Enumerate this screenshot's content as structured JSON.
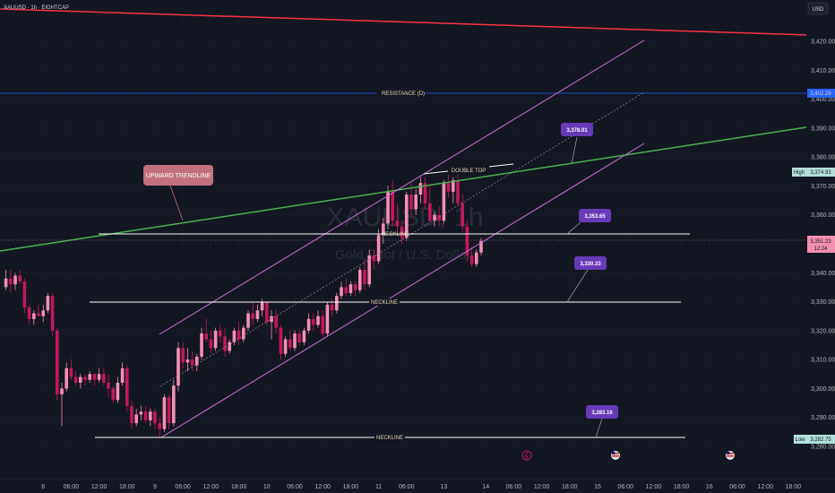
{
  "header": {
    "symbol": "XAUUSD · 1h · EIGHTCAP",
    "currency": "USD"
  },
  "watermark": {
    "symbol": "XAUUSD, 1h",
    "description": "Gold Spot / U.S. Dollar"
  },
  "chart_data": {
    "type": "candlestick",
    "ylim": [
      3278,
      3432
    ],
    "y_ticks": [
      "3,280.00",
      "3,290.00",
      "3,300.00",
      "3,310.00",
      "3,320.00",
      "3,330.00",
      "3,340.00",
      "3,350.00",
      "3,360.00",
      "3,370.00",
      "3,380.00",
      "3,390.00",
      "3,400.00",
      "3,410.00",
      "3,420.00"
    ],
    "y_tick_values": [
      3280,
      3290,
      3300,
      3310,
      3320,
      3330,
      3340,
      3350,
      3360,
      3370,
      3380,
      3390,
      3400,
      3410,
      3420
    ],
    "x_ticks": [
      {
        "label": "8",
        "bar": 8
      },
      {
        "label": "06:00",
        "bar": 14
      },
      {
        "label": "12:00",
        "bar": 20
      },
      {
        "label": "18:00",
        "bar": 26
      },
      {
        "label": "9",
        "bar": 32
      },
      {
        "label": "06:00",
        "bar": 38
      },
      {
        "label": "12:00",
        "bar": 44
      },
      {
        "label": "18:00",
        "bar": 50
      },
      {
        "label": "10",
        "bar": 56
      },
      {
        "label": "06:00",
        "bar": 62
      },
      {
        "label": "12:00",
        "bar": 68
      },
      {
        "label": "18:00",
        "bar": 74
      },
      {
        "label": "11",
        "bar": 80
      },
      {
        "label": "06:00",
        "bar": 86
      },
      {
        "label": "13",
        "bar": 94
      },
      {
        "label": "14",
        "bar": 103
      },
      {
        "label": "06:00",
        "bar": 109
      },
      {
        "label": "12:00",
        "bar": 115
      },
      {
        "label": "18:00",
        "bar": 121
      },
      {
        "label": "15",
        "bar": 127
      },
      {
        "label": "06:00",
        "bar": 133
      },
      {
        "label": "12:00",
        "bar": 139
      },
      {
        "label": "18:00",
        "bar": 145
      },
      {
        "label": "16",
        "bar": 151
      },
      {
        "label": "06:00",
        "bar": 157
      },
      {
        "label": "12:00",
        "bar": 163
      },
      {
        "label": "18:00",
        "bar": 169
      }
    ],
    "ohlc": [
      [
        3335,
        3341,
        3334,
        3338
      ],
      [
        3338,
        3341,
        3333,
        3336
      ],
      [
        3336,
        3340,
        3334,
        3339
      ],
      [
        3339,
        3341,
        3336,
        3337
      ],
      [
        3337,
        3338,
        3326,
        3328
      ],
      [
        3328,
        3329,
        3322,
        3324
      ],
      [
        3324,
        3327,
        3322,
        3326
      ],
      [
        3326,
        3329,
        3325,
        3325
      ],
      [
        3325,
        3329,
        3323,
        3327
      ],
      [
        3327,
        3333,
        3326,
        3332
      ],
      [
        3332,
        3333,
        3318,
        3320
      ],
      [
        3320,
        3321,
        3296,
        3298
      ],
      [
        3298,
        3302,
        3287,
        3300
      ],
      [
        3300,
        3309,
        3299,
        3307
      ],
      [
        3307,
        3310,
        3303,
        3304
      ],
      [
        3304,
        3306,
        3301,
        3302
      ],
      [
        3302,
        3305,
        3300,
        3304
      ],
      [
        3304,
        3305,
        3301,
        3303
      ],
      [
        3303,
        3306,
        3302,
        3305
      ],
      [
        3305,
        3305,
        3301,
        3303
      ],
      [
        3303,
        3307,
        3302,
        3305
      ],
      [
        3305,
        3307,
        3301,
        3302
      ],
      [
        3302,
        3305,
        3297,
        3300
      ],
      [
        3300,
        3301,
        3295,
        3296
      ],
      [
        3296,
        3304,
        3295,
        3302
      ],
      [
        3302,
        3309,
        3301,
        3307
      ],
      [
        3307,
        3308,
        3292,
        3294
      ],
      [
        3294,
        3296,
        3286,
        3288
      ],
      [
        3288,
        3293,
        3287,
        3291
      ],
      [
        3291,
        3294,
        3289,
        3292
      ],
      [
        3292,
        3294,
        3288,
        3289
      ],
      [
        3289,
        3293,
        3287,
        3292
      ],
      [
        3292,
        3293,
        3286,
        3288
      ],
      [
        3288,
        3290,
        3283,
        3286
      ],
      [
        3286,
        3298,
        3285,
        3297
      ],
      [
        3297,
        3298,
        3286,
        3288
      ],
      [
        3288,
        3303,
        3287,
        3301
      ],
      [
        3301,
        3316,
        3299,
        3314
      ],
      [
        3314,
        3316,
        3307,
        3309
      ],
      [
        3309,
        3314,
        3306,
        3310
      ],
      [
        3310,
        3313,
        3306,
        3308
      ],
      [
        3308,
        3312,
        3306,
        3311
      ],
      [
        3311,
        3321,
        3310,
        3319
      ],
      [
        3319,
        3324,
        3316,
        3317
      ],
      [
        3317,
        3320,
        3312,
        3314
      ],
      [
        3314,
        3321,
        3313,
        3320
      ],
      [
        3320,
        3322,
        3316,
        3318
      ],
      [
        3318,
        3321,
        3311,
        3313
      ],
      [
        3313,
        3317,
        3312,
        3316
      ],
      [
        3316,
        3321,
        3315,
        3320
      ],
      [
        3320,
        3323,
        3315,
        3317
      ],
      [
        3317,
        3322,
        3316,
        3321
      ],
      [
        3321,
        3327,
        3320,
        3326
      ],
      [
        3326,
        3330,
        3322,
        3324
      ],
      [
        3324,
        3329,
        3323,
        3327
      ],
      [
        3327,
        3331,
        3325,
        3330
      ],
      [
        3330,
        3330,
        3322,
        3323
      ],
      [
        3323,
        3327,
        3317,
        3325
      ],
      [
        3325,
        3327,
        3319,
        3321
      ],
      [
        3321,
        3322,
        3310,
        3312
      ],
      [
        3312,
        3318,
        3311,
        3317
      ],
      [
        3317,
        3320,
        3313,
        3314
      ],
      [
        3314,
        3320,
        3313,
        3319
      ],
      [
        3319,
        3320,
        3315,
        3316
      ],
      [
        3316,
        3321,
        3315,
        3320
      ],
      [
        3320,
        3326,
        3319,
        3324
      ],
      [
        3324,
        3326,
        3320,
        3322
      ],
      [
        3322,
        3327,
        3321,
        3325
      ],
      [
        3325,
        3327,
        3318,
        3319
      ],
      [
        3319,
        3330,
        3318,
        3329
      ],
      [
        3329,
        3331,
        3325,
        3327
      ],
      [
        3327,
        3333,
        3326,
        3332
      ],
      [
        3332,
        3337,
        3331,
        3335
      ],
      [
        3335,
        3338,
        3332,
        3333
      ],
      [
        3333,
        3337,
        3332,
        3336
      ],
      [
        3336,
        3337,
        3332,
        3334
      ],
      [
        3334,
        3342,
        3333,
        3341
      ],
      [
        3341,
        3345,
        3334,
        3336
      ],
      [
        3336,
        3348,
        3335,
        3346
      ],
      [
        3346,
        3348,
        3341,
        3344
      ],
      [
        3344,
        3355,
        3343,
        3353
      ],
      [
        3353,
        3359,
        3350,
        3357
      ],
      [
        3357,
        3370,
        3355,
        3368
      ],
      [
        3368,
        3372,
        3356,
        3358
      ],
      [
        3358,
        3364,
        3354,
        3356
      ],
      [
        3356,
        3358,
        3350,
        3352
      ],
      [
        3352,
        3368,
        3351,
        3367
      ],
      [
        3367,
        3371,
        3360,
        3362
      ],
      [
        3362,
        3369,
        3360,
        3367
      ],
      [
        3367,
        3373,
        3364,
        3371
      ],
      [
        3371,
        3373,
        3362,
        3364
      ],
      [
        3364,
        3370,
        3357,
        3358
      ],
      [
        3358,
        3361,
        3356,
        3360
      ],
      [
        3360,
        3363,
        3356,
        3358
      ],
      [
        3358,
        3372,
        3357,
        3371
      ],
      [
        3371,
        3374,
        3366,
        3368
      ],
      [
        3368,
        3373,
        3364,
        3372
      ],
      [
        3372,
        3374,
        3363,
        3364
      ],
      [
        3364,
        3367,
        3354,
        3356
      ],
      [
        3356,
        3358,
        3344,
        3346
      ],
      [
        3346,
        3349,
        3342,
        3343
      ],
      [
        3343,
        3348,
        3342,
        3347
      ],
      [
        3347,
        3352,
        3346,
        3351
      ]
    ],
    "last_price": "3,351.23",
    "countdown": "12:24"
  },
  "price_labels": {
    "resistance": "3,402.29",
    "high_tag": "High",
    "high_value": "3,374.93",
    "low_tag": "Low",
    "low_value": "3,282.75"
  },
  "annotations": {
    "upward_trendline": "UPWARD TRENDLINE",
    "double_top": "DOUBLE TOP",
    "resistance_line": "RESISTANCE (D)",
    "neckline_1": "NECKLINE",
    "neckline_2": "NECKLINE",
    "neckline_3": "NECKLINE",
    "target_1": "3,378.01",
    "target_2": "3,353.65",
    "target_3": "3,330.33",
    "target_4": "3,283.16"
  },
  "colors": {
    "background": "#131722",
    "up_candle": "#f48fb1",
    "down_candle": "#c2185b",
    "red_line": "#f23645",
    "blue_line": "#2962ff",
    "green_line": "#4caf50",
    "channel": "#d16fd6",
    "target_box": "#673ab7",
    "trend_box": "#c2707e",
    "last_price": "#f48fb1",
    "high_box": "#b2dfdb",
    "low_box": "#b2dfdb"
  }
}
